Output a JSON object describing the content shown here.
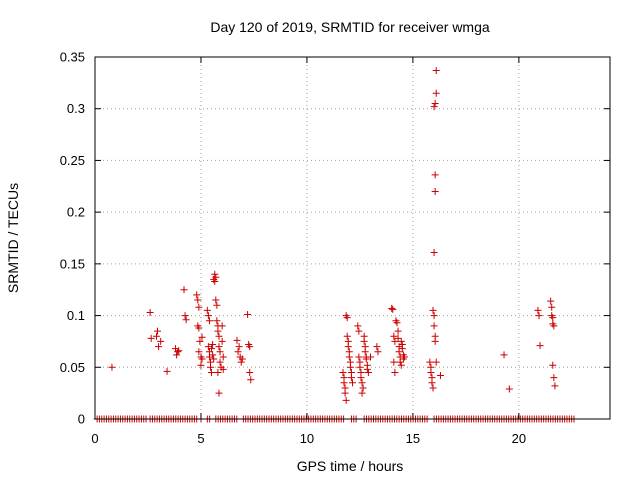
{
  "chart_data": {
    "type": "scatter",
    "title": "Day 120 of 2019, SRMTID for receiver wmga",
    "xlabel": "GPS time / hours",
    "ylabel": "SRMTID / TECUs",
    "xlim": [
      0,
      24.3
    ],
    "ylim": [
      0,
      0.35
    ],
    "xticks": [
      0,
      5,
      10,
      15,
      20
    ],
    "yticks": [
      0,
      0.05,
      0.1,
      0.15,
      0.2,
      0.25,
      0.3,
      0.35
    ],
    "xtick_labels": [
      "0",
      "5",
      "10",
      "15",
      "20"
    ],
    "ytick_labels": [
      "0",
      "0.05",
      "0.1",
      "0.15",
      "0.2",
      "0.25",
      "0.3",
      "0.35"
    ],
    "grid": true,
    "marker": "+",
    "color": "#cc0000",
    "series": [
      {
        "name": "SRMTID",
        "points": [
          [
            0.8,
            0.05
          ],
          [
            2.6,
            0.103
          ],
          [
            2.65,
            0.078
          ],
          [
            2.9,
            0.08
          ],
          [
            2.95,
            0.085
          ],
          [
            3.0,
            0.07
          ],
          [
            3.1,
            0.075
          ],
          [
            3.4,
            0.046
          ],
          [
            3.8,
            0.068
          ],
          [
            3.85,
            0.062
          ],
          [
            3.9,
            0.065
          ],
          [
            3.95,
            0.066
          ],
          [
            4.2,
            0.125
          ],
          [
            4.25,
            0.1
          ],
          [
            4.3,
            0.096
          ],
          [
            4.8,
            0.12
          ],
          [
            4.85,
            0.115
          ],
          [
            4.9,
            0.108
          ],
          [
            4.85,
            0.09
          ],
          [
            4.9,
            0.088
          ],
          [
            4.95,
            0.075
          ],
          [
            4.9,
            0.065
          ],
          [
            5.0,
            0.06
          ],
          [
            5.0,
            0.052
          ],
          [
            5.05,
            0.079
          ],
          [
            5.05,
            0.058
          ],
          [
            5.3,
            0.105
          ],
          [
            5.35,
            0.1
          ],
          [
            5.4,
            0.095
          ],
          [
            5.35,
            0.07
          ],
          [
            5.4,
            0.065
          ],
          [
            5.4,
            0.06
          ],
          [
            5.45,
            0.055
          ],
          [
            5.45,
            0.05
          ],
          [
            5.5,
            0.045
          ],
          [
            5.5,
            0.068
          ],
          [
            5.55,
            0.072
          ],
          [
            5.55,
            0.062
          ],
          [
            5.6,
            0.058
          ],
          [
            5.6,
            0.135
          ],
          [
            5.65,
            0.14
          ],
          [
            5.65,
            0.133
          ],
          [
            5.7,
            0.137
          ],
          [
            5.7,
            0.115
          ],
          [
            5.75,
            0.11
          ],
          [
            5.75,
            0.095
          ],
          [
            5.8,
            0.09
          ],
          [
            5.8,
            0.085
          ],
          [
            5.85,
            0.08
          ],
          [
            5.85,
            0.07
          ],
          [
            5.9,
            0.065
          ],
          [
            5.9,
            0.055
          ],
          [
            5.95,
            0.05
          ],
          [
            5.8,
            0.045
          ],
          [
            5.85,
            0.025
          ],
          [
            6.0,
            0.09
          ],
          [
            6.0,
            0.075
          ],
          [
            6.05,
            0.06
          ],
          [
            6.05,
            0.048
          ],
          [
            6.7,
            0.076
          ],
          [
            6.75,
            0.065
          ],
          [
            6.8,
            0.07
          ],
          [
            6.85,
            0.06
          ],
          [
            6.9,
            0.055
          ],
          [
            6.95,
            0.058
          ],
          [
            7.2,
            0.101
          ],
          [
            7.25,
            0.072
          ],
          [
            7.3,
            0.07
          ],
          [
            7.3,
            0.045
          ],
          [
            7.35,
            0.038
          ],
          [
            11.7,
            0.045
          ],
          [
            11.75,
            0.04
          ],
          [
            11.75,
            0.035
          ],
          [
            11.8,
            0.03
          ],
          [
            11.8,
            0.025
          ],
          [
            11.85,
            0.018
          ],
          [
            11.85,
            0.1
          ],
          [
            11.9,
            0.098
          ],
          [
            11.9,
            0.08
          ],
          [
            11.95,
            0.075
          ],
          [
            11.95,
            0.07
          ],
          [
            12.0,
            0.065
          ],
          [
            12.0,
            0.06
          ],
          [
            12.05,
            0.055
          ],
          [
            12.05,
            0.05
          ],
          [
            12.1,
            0.045
          ],
          [
            12.1,
            0.04
          ],
          [
            12.15,
            0.035
          ],
          [
            12.4,
            0.09
          ],
          [
            12.45,
            0.085
          ],
          [
            12.45,
            0.06
          ],
          [
            12.5,
            0.055
          ],
          [
            12.5,
            0.05
          ],
          [
            12.55,
            0.045
          ],
          [
            12.55,
            0.04
          ],
          [
            12.6,
            0.035
          ],
          [
            12.6,
            0.025
          ],
          [
            12.65,
            0.03
          ],
          [
            12.7,
            0.08
          ],
          [
            12.7,
            0.075
          ],
          [
            12.75,
            0.07
          ],
          [
            12.75,
            0.065
          ],
          [
            12.8,
            0.06
          ],
          [
            12.8,
            0.058
          ],
          [
            12.85,
            0.052
          ],
          [
            12.85,
            0.048
          ],
          [
            12.9,
            0.045
          ],
          [
            13.0,
            0.06
          ],
          [
            13.3,
            0.07
          ],
          [
            13.35,
            0.065
          ],
          [
            14.0,
            0.107
          ],
          [
            14.05,
            0.106
          ],
          [
            14.1,
            0.08
          ],
          [
            14.15,
            0.075
          ],
          [
            14.1,
            0.055
          ],
          [
            14.15,
            0.045
          ],
          [
            14.2,
            0.095
          ],
          [
            14.25,
            0.093
          ],
          [
            14.3,
            0.085
          ],
          [
            14.3,
            0.078
          ],
          [
            14.35,
            0.07
          ],
          [
            14.35,
            0.065
          ],
          [
            14.4,
            0.06
          ],
          [
            14.4,
            0.055
          ],
          [
            14.45,
            0.052
          ],
          [
            14.45,
            0.075
          ],
          [
            14.5,
            0.072
          ],
          [
            14.5,
            0.068
          ],
          [
            14.55,
            0.062
          ],
          [
            14.55,
            0.058
          ],
          [
            14.6,
            0.06
          ],
          [
            15.8,
            0.055
          ],
          [
            15.85,
            0.05
          ],
          [
            15.85,
            0.045
          ],
          [
            15.9,
            0.04
          ],
          [
            15.9,
            0.035
          ],
          [
            15.95,
            0.03
          ],
          [
            15.95,
            0.105
          ],
          [
            16.0,
            0.1
          ],
          [
            16.0,
            0.09
          ],
          [
            16.05,
            0.08
          ],
          [
            16.05,
            0.075
          ],
          [
            16.1,
            0.055
          ],
          [
            16.0,
            0.161
          ],
          [
            16.05,
            0.22
          ],
          [
            16.05,
            0.236
          ],
          [
            16.0,
            0.302
          ],
          [
            16.05,
            0.305
          ],
          [
            16.1,
            0.315
          ],
          [
            16.1,
            0.337
          ],
          [
            16.3,
            0.042
          ],
          [
            19.3,
            0.062
          ],
          [
            19.55,
            0.029
          ],
          [
            20.9,
            0.105
          ],
          [
            20.95,
            0.1
          ],
          [
            21.0,
            0.071
          ],
          [
            21.5,
            0.114
          ],
          [
            21.55,
            0.108
          ],
          [
            21.55,
            0.1
          ],
          [
            21.6,
            0.098
          ],
          [
            21.6,
            0.092
          ],
          [
            21.65,
            0.09
          ],
          [
            21.6,
            0.052
          ],
          [
            21.65,
            0.04
          ],
          [
            21.7,
            0.032
          ]
        ],
        "baseline": {
          "y": 0,
          "x_ranges": [
            [
              0.1,
              2.5
            ],
            [
              2.6,
              4.8
            ],
            [
              5.0,
              5.1
            ],
            [
              5.3,
              5.5
            ],
            [
              5.7,
              6.7
            ],
            [
              7.0,
              11.8
            ],
            [
              12.1,
              12.4
            ],
            [
              12.7,
              15.7
            ],
            [
              16.0,
              22.7
            ]
          ],
          "step": 0.11
        }
      }
    ]
  }
}
